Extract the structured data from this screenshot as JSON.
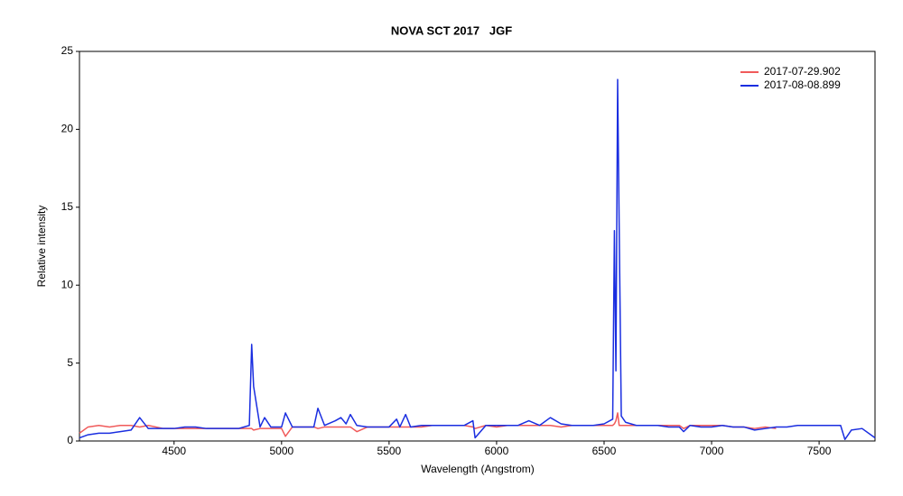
{
  "chart_data": {
    "type": "line",
    "title": "NOVA SCT 2017   JGF",
    "x_label": "Wavelength (Angstrom)",
    "y_label": "Relative intensity",
    "x": [
      4060,
      4100,
      4150,
      4200,
      4250,
      4300,
      4340,
      4380,
      4450,
      4500,
      4550,
      4600,
      4650,
      4700,
      4750,
      4800,
      4850,
      4861,
      4870,
      4900,
      4921,
      4950,
      5000,
      5018,
      5050,
      5100,
      5150,
      5169,
      5200,
      5250,
      5276,
      5300,
      5320,
      5350,
      5400,
      5450,
      5500,
      5535,
      5550,
      5577,
      5600,
      5650,
      5700,
      5750,
      5800,
      5850,
      5890,
      5900,
      5950,
      6000,
      6050,
      6100,
      6150,
      6200,
      6250,
      6300,
      6350,
      6400,
      6450,
      6500,
      6540,
      6548,
      6555,
      6563,
      6570,
      6580,
      6600,
      6650,
      6700,
      6750,
      6800,
      6850,
      6870,
      6900,
      6950,
      7000,
      7050,
      7100,
      7150,
      7200,
      7250,
      7300,
      7350,
      7400,
      7450,
      7500,
      7550,
      7600,
      7620,
      7650,
      7700,
      7760
    ],
    "series": [
      {
        "name": "2017-07-29.902",
        "color": "#f05a5a",
        "values": [
          0.5,
          0.9,
          1.0,
          0.9,
          1.0,
          1.0,
          0.9,
          1.0,
          0.8,
          0.8,
          0.8,
          0.8,
          0.8,
          0.8,
          0.8,
          0.8,
          0.8,
          0.8,
          0.7,
          0.8,
          0.8,
          0.8,
          0.8,
          0.3,
          0.9,
          0.9,
          0.9,
          0.8,
          0.9,
          0.9,
          0.9,
          0.9,
          0.9,
          0.6,
          0.9,
          0.9,
          0.9,
          0.9,
          0.9,
          0.9,
          0.9,
          0.9,
          1.0,
          1.0,
          1.0,
          1.0,
          0.9,
          0.8,
          1.0,
          0.9,
          1.0,
          1.0,
          1.0,
          1.0,
          1.0,
          0.9,
          1.0,
          1.0,
          1.0,
          1.0,
          1.0,
          1.1,
          1.3,
          1.8,
          1.0,
          1.0,
          1.0,
          1.0,
          1.0,
          1.0,
          1.0,
          1.0,
          0.8,
          1.0,
          1.0,
          1.0,
          1.0,
          0.9,
          0.9,
          0.8,
          0.9,
          0.8,
          null,
          null,
          null,
          null,
          null,
          null,
          null,
          null,
          null,
          null
        ]
      },
      {
        "name": "2017-08-08.899",
        "color": "#1a2ee0",
        "values": [
          0.2,
          0.4,
          0.5,
          0.5,
          0.6,
          0.7,
          1.5,
          0.8,
          0.8,
          0.8,
          0.9,
          0.9,
          0.8,
          0.8,
          0.8,
          0.8,
          1.0,
          6.2,
          3.5,
          0.9,
          1.5,
          0.9,
          0.9,
          1.8,
          0.9,
          0.9,
          0.9,
          2.1,
          1.0,
          1.3,
          1.5,
          1.1,
          1.7,
          1.0,
          0.9,
          0.9,
          0.9,
          1.4,
          0.9,
          1.7,
          0.9,
          1.0,
          1.0,
          1.0,
          1.0,
          1.0,
          1.3,
          0.2,
          1.0,
          1.0,
          1.0,
          1.0,
          1.3,
          1.0,
          1.5,
          1.1,
          1.0,
          1.0,
          1.0,
          1.1,
          1.4,
          13.5,
          4.5,
          23.2,
          14,
          1.6,
          1.2,
          1.0,
          1.0,
          1.0,
          0.9,
          0.9,
          0.6,
          1.0,
          0.9,
          0.9,
          1.0,
          0.9,
          0.9,
          0.7,
          0.8,
          0.9,
          0.9,
          1.0,
          1.0,
          1.0,
          1.0,
          1.0,
          0.1,
          0.7,
          0.8,
          0.2
        ]
      }
    ],
    "xlim": [
      4060,
      7760
    ],
    "xticks": [
      4500,
      5000,
      5500,
      6000,
      6500,
      7000,
      7500
    ],
    "ylim": [
      0,
      25
    ],
    "yticks": [
      0,
      5,
      10,
      15,
      20,
      25
    ],
    "grid": false,
    "legend": "upper right"
  }
}
